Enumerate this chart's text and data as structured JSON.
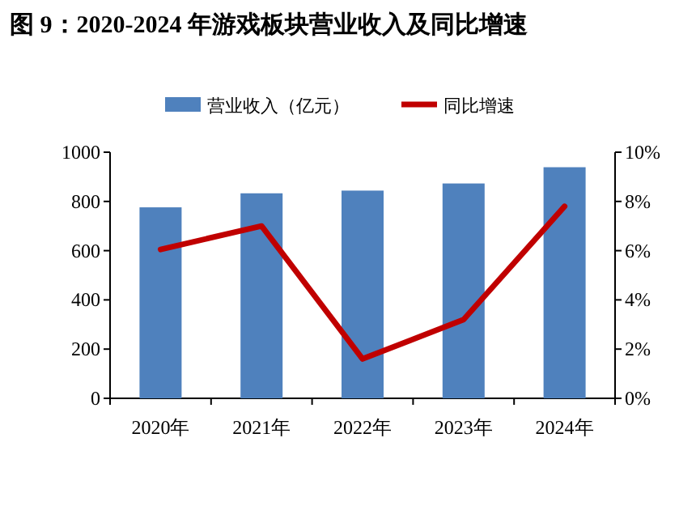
{
  "chart_data": {
    "type": "bar",
    "title": "图 9：2020-2024 年游戏板块营业收入及同比增速",
    "categories": [
      "2020年",
      "2021年",
      "2022年",
      "2023年",
      "2024年"
    ],
    "series": [
      {
        "name": "营业收入（亿元）",
        "color": "#4f81bd",
        "values": [
          776,
          833,
          844,
          873,
          939
        ]
      },
      {
        "name": "同比增速",
        "type": "line",
        "axis": "y2",
        "color": "#c00000",
        "values": [
          6.05,
          7.0,
          1.6,
          3.2,
          7.8
        ]
      }
    ],
    "ylim": [
      0,
      1000
    ],
    "yticks": [
      0,
      200,
      400,
      600,
      800,
      1000
    ],
    "y2lim": [
      0,
      10
    ],
    "y2ticks": [
      {
        "value": 0,
        "label": "0%"
      },
      {
        "value": 2,
        "label": "2%"
      },
      {
        "value": 4,
        "label": "4%"
      },
      {
        "value": 6,
        "label": "6%"
      },
      {
        "value": 8,
        "label": "8%"
      },
      {
        "value": 10,
        "label": "10%"
      }
    ],
    "legend": "top"
  }
}
